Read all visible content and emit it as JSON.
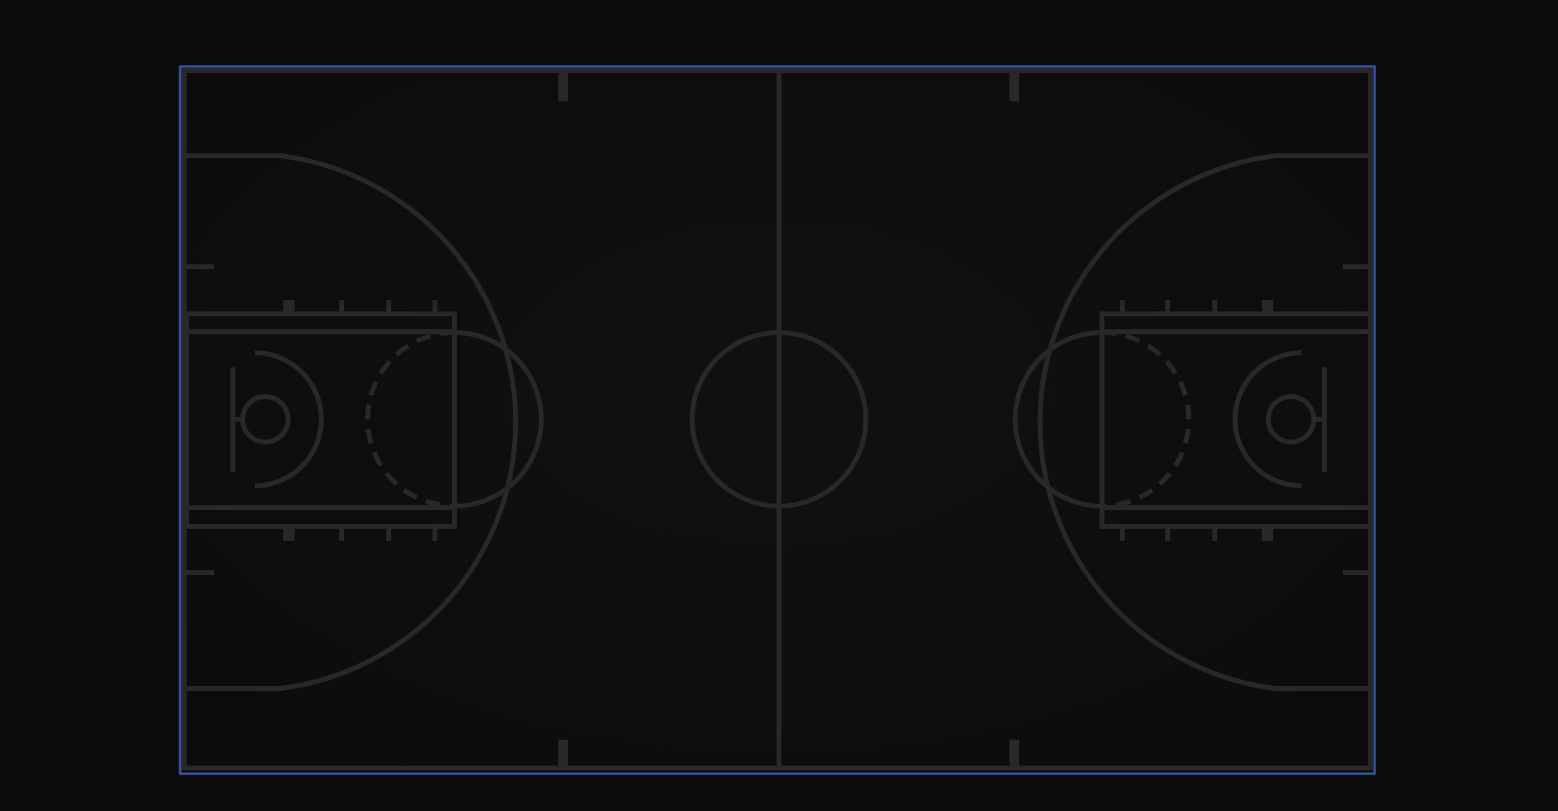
{
  "court": {
    "type": "full-court-basketball",
    "theme": {
      "background": "#0b0b0b",
      "court_fill": "#0f0f0f",
      "line_color": "#282828",
      "frame_color": "#3454a4"
    },
    "selected": true,
    "sides": [
      "left-half",
      "right-half"
    ]
  }
}
